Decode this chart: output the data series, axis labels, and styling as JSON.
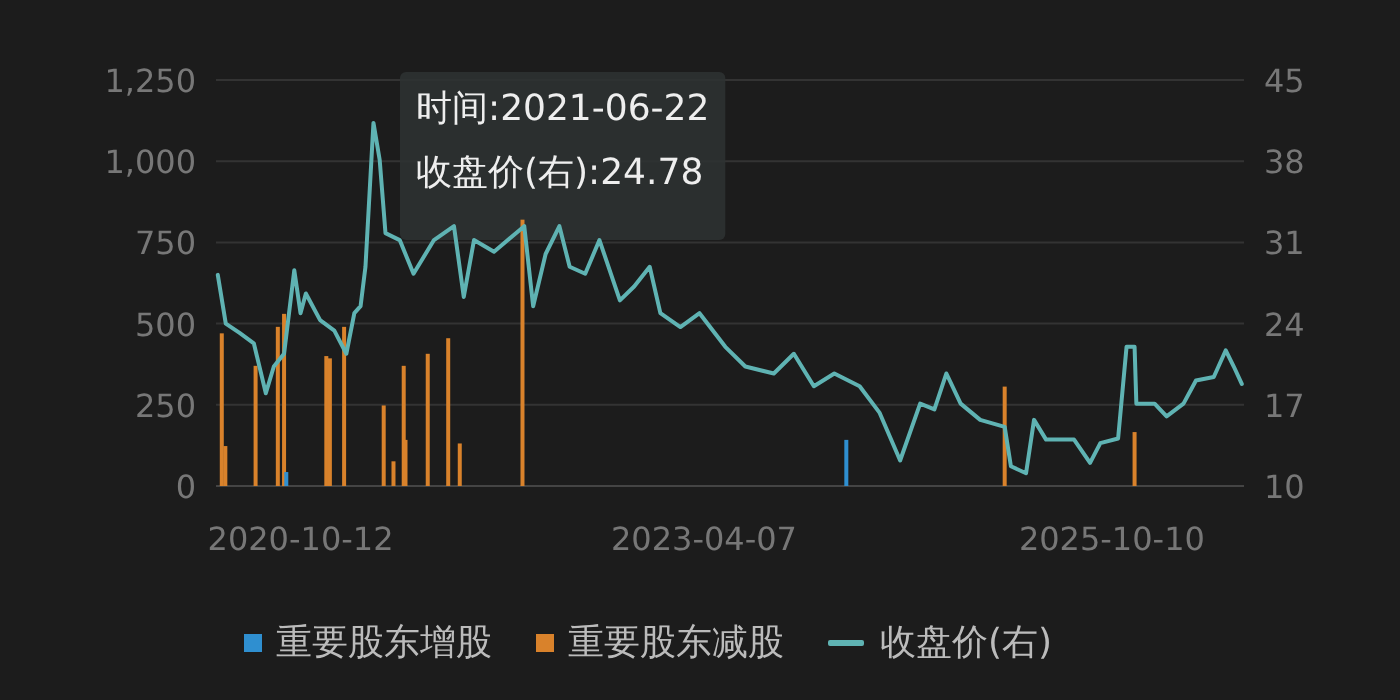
{
  "chart_data": {
    "type": "bar",
    "xlim": [
      "2020-04-05",
      "2026-08-03"
    ],
    "xticks": [
      {
        "value": "2020-10-12",
        "label": "2020-10-12"
      },
      {
        "value": "2023-04-07",
        "label": "2023-04-07"
      },
      {
        "value": "2025-10-10",
        "label": "2025-10-10"
      }
    ],
    "ylim": [
      0,
      1250
    ],
    "yticks": [
      0,
      250,
      500,
      750,
      {
        "value": 1000,
        "label": "1,000"
      },
      {
        "value": 1250,
        "label": "1,250"
      }
    ],
    "y2lim": [
      10,
      45
    ],
    "y2ticks": [
      10,
      17,
      24,
      31,
      38,
      45
    ],
    "grid": "y",
    "legend": "bottom",
    "annotations": [
      "时间:2021-06-22",
      "收盘价(右):24.78"
    ],
    "series": [
      {
        "name": "重要股东增股",
        "color": "#2f8fd0",
        "x": [
          "2020-09-10",
          "2024-02-21"
        ],
        "values": [
          43,
          142
        ]
      },
      {
        "name": "重要股东减股",
        "color": "#d9822b",
        "x": [
          "2020-04-18",
          "2020-04-26",
          "2020-07-03",
          "2020-08-22",
          "2020-09-05",
          "2020-12-09",
          "2020-12-17",
          "2021-01-18",
          "2021-04-17",
          "2021-05-09",
          "2021-06-01",
          "2021-06-05",
          "2021-07-25",
          "2021-09-09",
          "2021-10-05",
          "2022-02-23",
          "2025-02-11",
          "2025-11-30"
        ],
        "values": [
          470,
          123,
          370,
          490,
          530,
          400,
          393,
          490,
          248,
          76,
          370,
          142,
          407,
          455,
          131,
          820,
          306,
          166
        ]
      },
      {
        "name": "收盘价(右)",
        "type": "line",
        "axis": "y2",
        "color": "#5fb3b3",
        "x": [
          "2020-04-09",
          "2020-04-27",
          "2020-05-28",
          "2020-06-29",
          "2020-07-26",
          "2020-08-13",
          "2020-09-05",
          "2020-09-28",
          "2020-10-12",
          "2020-10-24",
          "2020-11-25",
          "2020-12-27",
          "2021-01-23",
          "2021-02-10",
          "2021-02-24",
          "2021-03-07",
          "2021-03-25",
          "2021-04-08",
          "2021-04-21",
          "2021-05-23",
          "2021-06-23",
          "2021-08-08",
          "2021-09-22",
          "2021-10-14",
          "2021-11-06",
          "2021-12-21",
          "2022-02-27",
          "2022-03-19",
          "2022-04-16",
          "2022-05-17",
          "2022-06-09",
          "2022-07-14",
          "2022-08-15",
          "2022-09-30",
          "2022-11-01",
          "2022-12-06",
          "2022-12-30",
          "2023-02-13",
          "2023-03-28",
          "2023-05-25",
          "2023-07-09",
          "2023-09-11",
          "2023-10-26",
          "2023-12-10",
          "2024-01-25",
          "2024-03-22",
          "2024-05-06",
          "2024-06-21",
          "2024-08-05",
          "2024-09-06",
          "2024-10-03",
          "2024-11-04",
          "2024-12-18",
          "2025-02-11",
          "2025-02-25",
          "2025-03-31",
          "2025-04-18",
          "2025-05-15",
          "2025-07-17",
          "2025-08-22",
          "2025-09-14",
          "2025-10-24",
          "2025-11-12",
          "2025-11-30",
          "2025-12-04",
          "2026-01-14",
          "2026-02-10",
          "2026-03-20",
          "2026-04-17",
          "2026-05-27",
          "2026-06-23",
          "2026-07-11",
          "2026-07-29"
        ],
        "values": [
          28.2,
          24.0,
          23.2,
          22.3,
          18.0,
          20.3,
          21.4,
          28.6,
          24.9,
          26.6,
          24.3,
          23.4,
          21.4,
          24.9,
          25.5,
          28.9,
          41.3,
          38.1,
          31.8,
          31.2,
          28.3,
          31.2,
          32.4,
          26.3,
          31.2,
          30.2,
          32.4,
          25.5,
          30.0,
          32.4,
          28.9,
          28.3,
          31.2,
          26.0,
          27.2,
          28.9,
          24.9,
          23.7,
          24.9,
          22.0,
          20.3,
          19.7,
          21.4,
          18.6,
          19.7,
          18.6,
          16.3,
          12.2,
          17.1,
          16.6,
          19.7,
          17.1,
          15.7,
          15.1,
          11.7,
          11.1,
          15.7,
          14.0,
          14.0,
          12.0,
          13.7,
          14.1,
          22.0,
          22.0,
          17.1,
          17.1,
          16.0,
          17.1,
          19.1,
          19.4,
          21.7,
          20.3,
          18.8
        ]
      }
    ]
  }
}
